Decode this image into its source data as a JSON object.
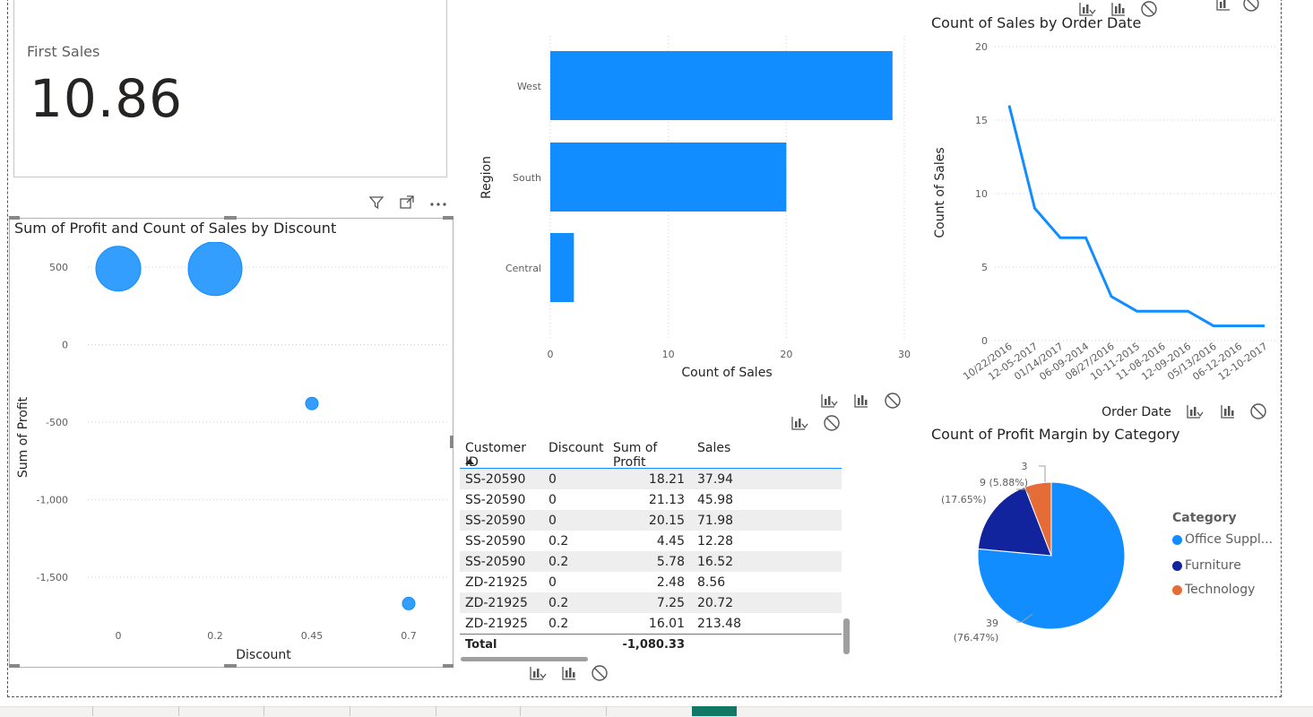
{
  "card": {
    "label": "First Sales",
    "value": "10.86"
  },
  "scatter": {
    "title": "Sum of Profit and Count of Sales by Discount",
    "xlabel": "Discount",
    "ylabel": "Sum of Profit",
    "yticks": [
      "500",
      "0",
      "-500",
      "-1,000",
      "-1,500"
    ],
    "xticks": [
      "0",
      "0.2",
      "0.45",
      "0.7"
    ]
  },
  "bar": {
    "ylabel": "Region",
    "xlabel": "Count of Sales",
    "categories": [
      "West",
      "South",
      "Central"
    ],
    "xticks": [
      "0",
      "10",
      "20",
      "30"
    ]
  },
  "line": {
    "title": "Count of Sales by Order Date",
    "ylabel": "Count of Sales",
    "xlabel": "Order Date",
    "yticks": [
      "20",
      "15",
      "10",
      "5",
      "0"
    ],
    "xticks": [
      "10/22/2016",
      "12-05-2017",
      "01/14/2017",
      "06-09-2014",
      "08/27/2016",
      "10-11-2015",
      "11-08-2016",
      "12-09-2016",
      "05/13/2016",
      "06-12-2016",
      "12-10-2017"
    ]
  },
  "table": {
    "headers": [
      "Customer ID",
      "Discount",
      "Sum of Profit",
      "Sales"
    ],
    "rows": [
      [
        "SS-20590",
        "0",
        "18.21",
        "37.94"
      ],
      [
        "SS-20590",
        "0",
        "21.13",
        "45.98"
      ],
      [
        "SS-20590",
        "0",
        "20.15",
        "71.98"
      ],
      [
        "SS-20590",
        "0.2",
        "4.45",
        "12.28"
      ],
      [
        "SS-20590",
        "0.2",
        "5.78",
        "16.52"
      ],
      [
        "ZD-21925",
        "0",
        "2.48",
        "8.56"
      ],
      [
        "ZD-21925",
        "0.2",
        "7.25",
        "20.72"
      ],
      [
        "ZD-21925",
        "0.2",
        "16.01",
        "213.48"
      ]
    ],
    "total_label": "Total",
    "total_value": "-1,080.33"
  },
  "pie": {
    "title": "Count of Profit Margin by Category",
    "legend_title": "Category",
    "legend": [
      "Office Suppl...",
      "Furniture",
      "Technology"
    ],
    "labels": {
      "office_count": "39",
      "office_pct": "(76.47%)",
      "furniture_count": "9 (5.88%)",
      "furniture_pct": "(17.65%)",
      "technology_count": "3"
    }
  },
  "colors": {
    "accent": "#118dff",
    "dark_blue": "#12239e",
    "orange": "#e66c37"
  },
  "chart_data": [
    {
      "type": "scatter",
      "title": "Sum of Profit and Count of Sales by Discount",
      "xlabel": "Discount",
      "ylabel": "Sum of Profit",
      "points": [
        {
          "x": 0,
          "y": 490,
          "size": 3
        },
        {
          "x": 0.2,
          "y": 490,
          "size": 5
        },
        {
          "x": 0.45,
          "y": -380,
          "size": 1
        },
        {
          "x": 0.7,
          "y": -1670,
          "size": 1
        }
      ],
      "ylim": [
        -1750,
        600
      ]
    },
    {
      "type": "bar",
      "orientation": "horizontal",
      "categories": [
        "West",
        "South",
        "Central"
      ],
      "values": [
        29,
        20,
        2
      ],
      "xlabel": "Count of Sales",
      "ylabel": "Region",
      "xlim": [
        0,
        30
      ]
    },
    {
      "type": "line",
      "title": "Count of Sales by Order Date",
      "x": [
        "10/22/2016",
        "12-05-2017",
        "01/14/2017",
        "06-09-2014",
        "08/27/2016",
        "10-11-2015",
        "11-08-2016",
        "12-09-2016",
        "05/13/2016",
        "06-12-2016",
        "12-10-2017"
      ],
      "values": [
        16,
        9,
        7,
        7,
        3,
        2,
        2,
        2,
        1,
        1,
        1
      ],
      "xlabel": "Order Date",
      "ylabel": "Count of Sales",
      "ylim": [
        0,
        20
      ]
    },
    {
      "type": "pie",
      "title": "Count of Profit Margin by Category",
      "categories": [
        "Office Suppl...",
        "Furniture",
        "Technology"
      ],
      "values": [
        39,
        9,
        3
      ]
    }
  ]
}
